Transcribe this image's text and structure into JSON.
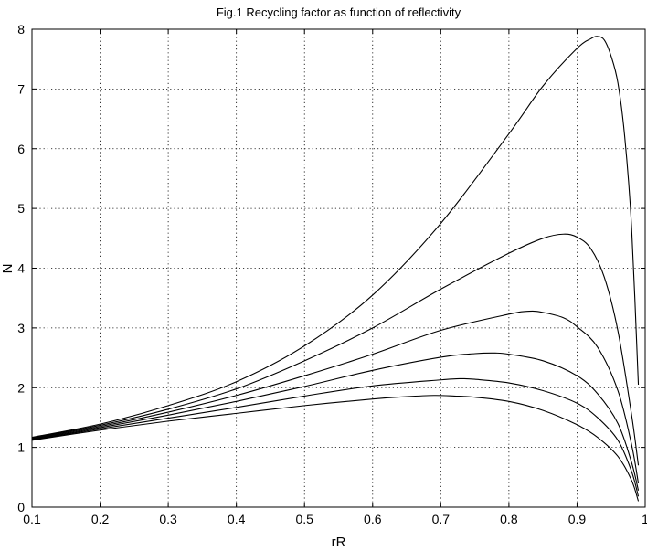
{
  "chart_data": {
    "type": "line",
    "title": "Fig.1 Recycling factor as function of reflectivity",
    "xlabel": "rR",
    "ylabel": "N",
    "xlim": [
      0.1,
      1
    ],
    "ylim": [
      0,
      8
    ],
    "x_ticks": [
      "0.1",
      "0.2",
      "0.3",
      "0.4",
      "0.5",
      "0.6",
      "0.7",
      "0.8",
      "0.9",
      "1"
    ],
    "y_ticks": [
      "0",
      "1",
      "2",
      "3",
      "4",
      "5",
      "6",
      "7",
      "8"
    ],
    "grid": true,
    "line_color": "#000000",
    "series": [
      {
        "x": [
          0.1,
          0.2,
          0.3,
          0.4,
          0.5,
          0.6,
          0.7,
          0.8,
          0.85,
          0.9,
          0.92,
          0.93,
          0.94,
          0.95,
          0.96,
          0.97,
          0.98,
          0.99
        ],
        "values": [
          1.17,
          1.39,
          1.7,
          2.1,
          2.7,
          3.55,
          4.75,
          6.25,
          7.05,
          7.68,
          7.84,
          7.88,
          7.82,
          7.55,
          7.1,
          6.2,
          4.7,
          2.05
        ]
      },
      {
        "x": [
          0.1,
          0.2,
          0.3,
          0.4,
          0.5,
          0.6,
          0.7,
          0.8,
          0.85,
          0.88,
          0.9,
          0.92,
          0.94,
          0.96,
          0.98,
          0.99
        ],
        "values": [
          1.16,
          1.37,
          1.64,
          1.98,
          2.45,
          3.0,
          3.65,
          4.25,
          4.5,
          4.57,
          4.52,
          4.33,
          3.85,
          2.95,
          1.55,
          0.7
        ]
      },
      {
        "x": [
          0.1,
          0.2,
          0.3,
          0.4,
          0.5,
          0.6,
          0.7,
          0.8,
          0.83,
          0.85,
          0.88,
          0.9,
          0.93,
          0.96,
          0.98,
          0.99
        ],
        "values": [
          1.15,
          1.35,
          1.59,
          1.87,
          2.2,
          2.56,
          2.96,
          3.23,
          3.28,
          3.26,
          3.17,
          3.02,
          2.68,
          1.95,
          1.05,
          0.4
        ]
      },
      {
        "x": [
          0.1,
          0.2,
          0.3,
          0.4,
          0.5,
          0.6,
          0.7,
          0.75,
          0.78,
          0.8,
          0.85,
          0.9,
          0.93,
          0.96,
          0.98,
          0.99
        ],
        "values": [
          1.14,
          1.33,
          1.54,
          1.77,
          2.02,
          2.29,
          2.51,
          2.57,
          2.58,
          2.56,
          2.45,
          2.2,
          1.9,
          1.4,
          0.75,
          0.28
        ]
      },
      {
        "x": [
          0.1,
          0.2,
          0.3,
          0.4,
          0.5,
          0.6,
          0.7,
          0.73,
          0.75,
          0.8,
          0.85,
          0.9,
          0.93,
          0.96,
          0.98,
          0.99
        ],
        "values": [
          1.13,
          1.31,
          1.49,
          1.67,
          1.86,
          2.03,
          2.13,
          2.15,
          2.14,
          2.08,
          1.95,
          1.74,
          1.5,
          1.12,
          0.6,
          0.18
        ]
      },
      {
        "x": [
          0.1,
          0.2,
          0.3,
          0.4,
          0.5,
          0.6,
          0.65,
          0.69,
          0.72,
          0.75,
          0.8,
          0.85,
          0.9,
          0.93,
          0.96,
          0.98,
          0.99
        ],
        "values": [
          1.12,
          1.29,
          1.44,
          1.57,
          1.7,
          1.81,
          1.85,
          1.87,
          1.86,
          1.84,
          1.77,
          1.62,
          1.38,
          1.17,
          0.85,
          0.45,
          0.1
        ]
      }
    ]
  }
}
